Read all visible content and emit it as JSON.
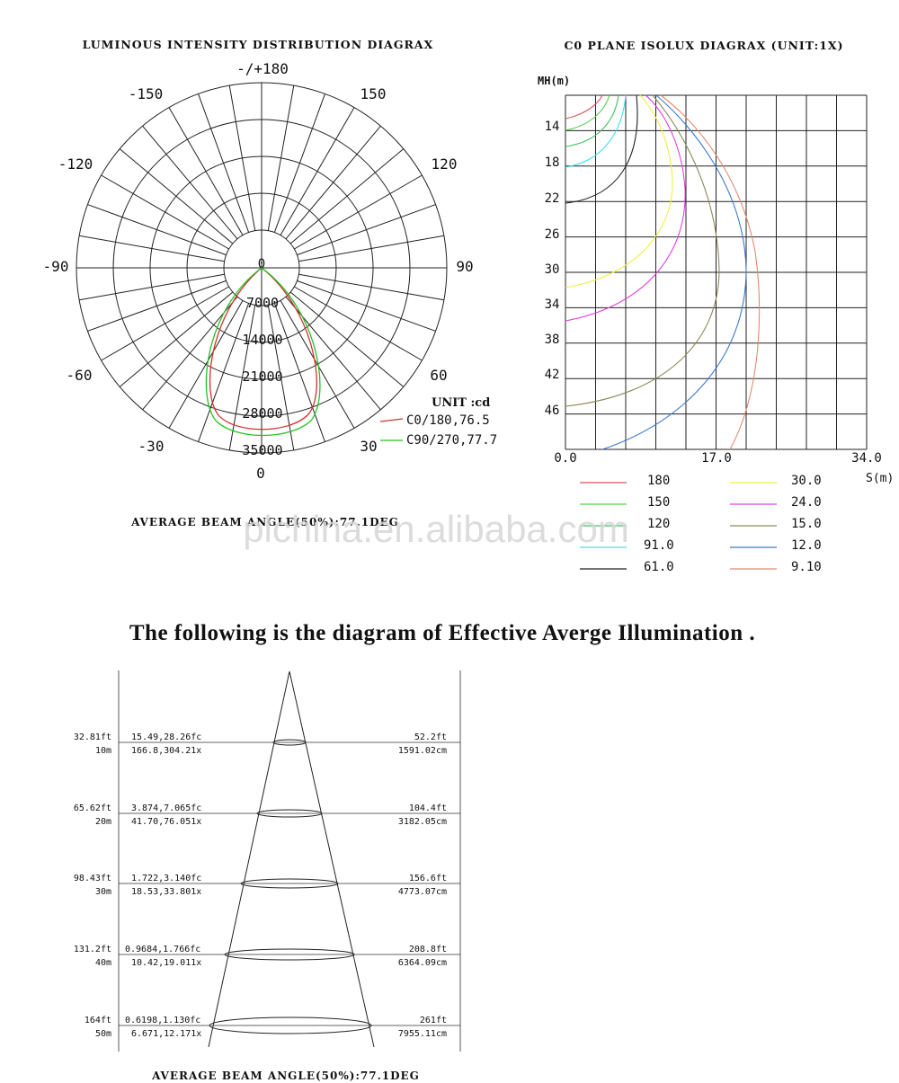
{
  "polar": {
    "title": "LUMINOUS  INTENSITY  DISTRIBUTION  DIAGRAX",
    "angle_labels": [
      "-/+180",
      "-150",
      "150",
      "-120",
      "120",
      "-90",
      "90",
      "-60",
      "60",
      "-30",
      "30",
      "0"
    ],
    "center_label": "0",
    "radial_labels": [
      "7000",
      "14000",
      "21000",
      "28000",
      "35000"
    ],
    "unit_label": "UNIT :cd",
    "legend": [
      {
        "label": "C0/180,76.5",
        "color": "#d83030"
      },
      {
        "label": "C90/270,77.7",
        "color": "#22c422"
      }
    ],
    "beam_note": "AVERAGE  BEAM ANGLE(50%):77.1DEG"
  },
  "isolux": {
    "title": "C0 PLANE  ISOLUX  DIAGRAX (UNIT:1X)",
    "y_axis_label": "MH(m)",
    "y_ticks": [
      "14",
      "18",
      "22",
      "26",
      "30",
      "34",
      "38",
      "42",
      "46"
    ],
    "x_ticks": [
      "0.0",
      "17.0",
      "34.0"
    ],
    "x_axis_label": "S(m)",
    "legend": [
      {
        "value": "180",
        "color": "#e0505a"
      },
      {
        "value": "150",
        "color": "#50d050"
      },
      {
        "value": "120",
        "color": "#40c060"
      },
      {
        "value": "91.0",
        "color": "#40e0f0"
      },
      {
        "value": "61.0",
        "color": "#222222"
      },
      {
        "value": "30.0",
        "color": "#f0f040"
      },
      {
        "value": "24.0",
        "color": "#e040e0"
      },
      {
        "value": "15.0",
        "color": "#8a8a5a"
      },
      {
        "value": "12.0",
        "color": "#3a7ad0"
      },
      {
        "value": "9.10",
        "color": "#e08a70"
      }
    ]
  },
  "watermark": "plchina.en.alibaba.com",
  "illumination": {
    "heading": "The following is the diagram of Effective Averge Illumination .",
    "rows": [
      {
        "ft": "32.81ft",
        "m": "10m",
        "fc": "15.49,28.26fc",
        "lx": "166.8,304.21x",
        "dia_ft": "52.2ft",
        "dia_cm": "1591.02cm"
      },
      {
        "ft": "65.62ft",
        "m": "20m",
        "fc": "3.874,7.065fc",
        "lx": "41.70,76.051x",
        "dia_ft": "104.4ft",
        "dia_cm": "3182.05cm"
      },
      {
        "ft": "98.43ft",
        "m": "30m",
        "fc": "1.722,3.140fc",
        "lx": "18.53,33.801x",
        "dia_ft": "156.6ft",
        "dia_cm": "4773.07cm"
      },
      {
        "ft": "131.2ft",
        "m": "40m",
        "fc": "0.9684,1.766fc",
        "lx": "10.42,19.011x",
        "dia_ft": "208.8ft",
        "dia_cm": "6364.09cm"
      },
      {
        "ft": "164ft",
        "m": "50m",
        "fc": "0.6198,1.130fc",
        "lx": "6.671,12.171x",
        "dia_ft": "261ft",
        "dia_cm": "7955.11cm"
      }
    ],
    "beam_note": "AVERAGE  BEAM ANGLE(50%):77.1DEG"
  }
}
